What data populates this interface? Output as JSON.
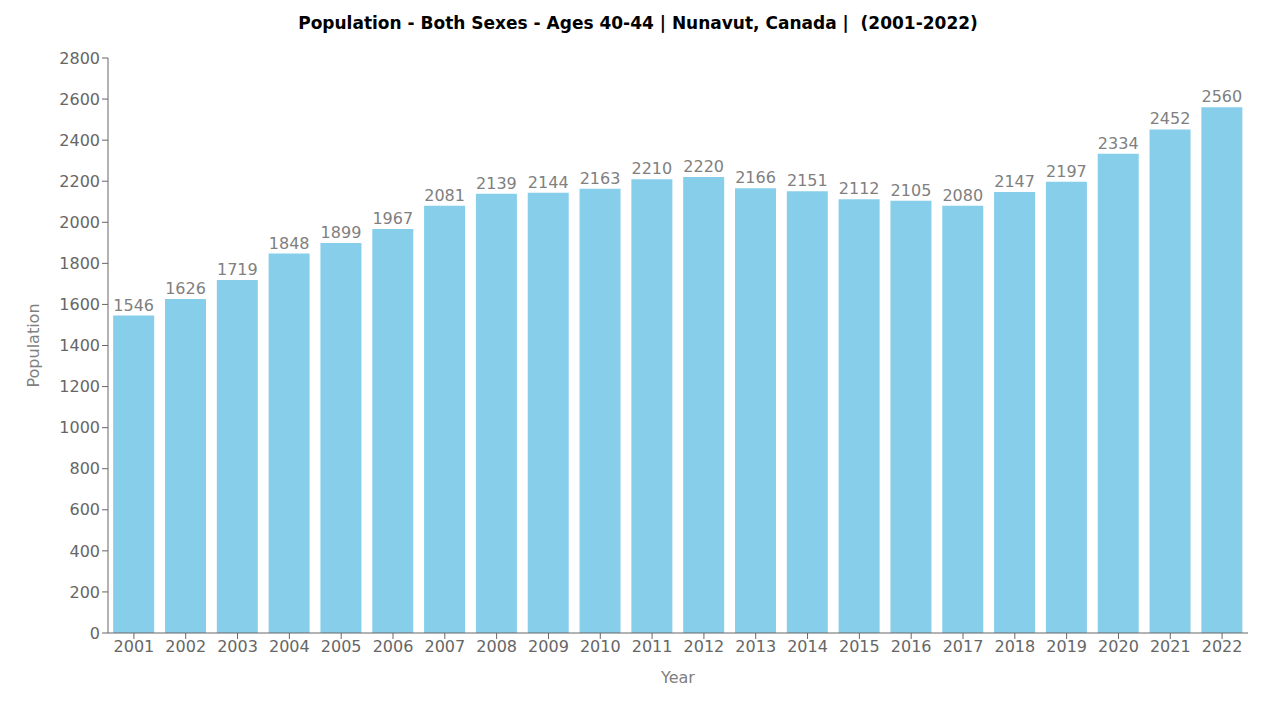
{
  "chart_data": {
    "type": "bar",
    "title": "Population - Both Sexes - Ages 40-44 | Nunavut, Canada |  (2001-2022)",
    "xlabel": "Year",
    "ylabel": "Population",
    "categories": [
      "2001",
      "2002",
      "2003",
      "2004",
      "2005",
      "2006",
      "2007",
      "2008",
      "2009",
      "2010",
      "2011",
      "2012",
      "2013",
      "2014",
      "2015",
      "2016",
      "2017",
      "2018",
      "2019",
      "2020",
      "2021",
      "2022"
    ],
    "values": [
      1546,
      1626,
      1719,
      1848,
      1899,
      1967,
      2081,
      2139,
      2144,
      2163,
      2210,
      2220,
      2166,
      2151,
      2112,
      2105,
      2080,
      2147,
      2197,
      2334,
      2452,
      2560
    ],
    "color": "#87CEEB",
    "ylim": [
      0,
      2800
    ],
    "yticks": [
      0,
      200,
      400,
      600,
      800,
      1000,
      1200,
      1400,
      1600,
      1800,
      2000,
      2200,
      2400,
      2600,
      2800
    ],
    "grid": false,
    "data_labels": true
  }
}
